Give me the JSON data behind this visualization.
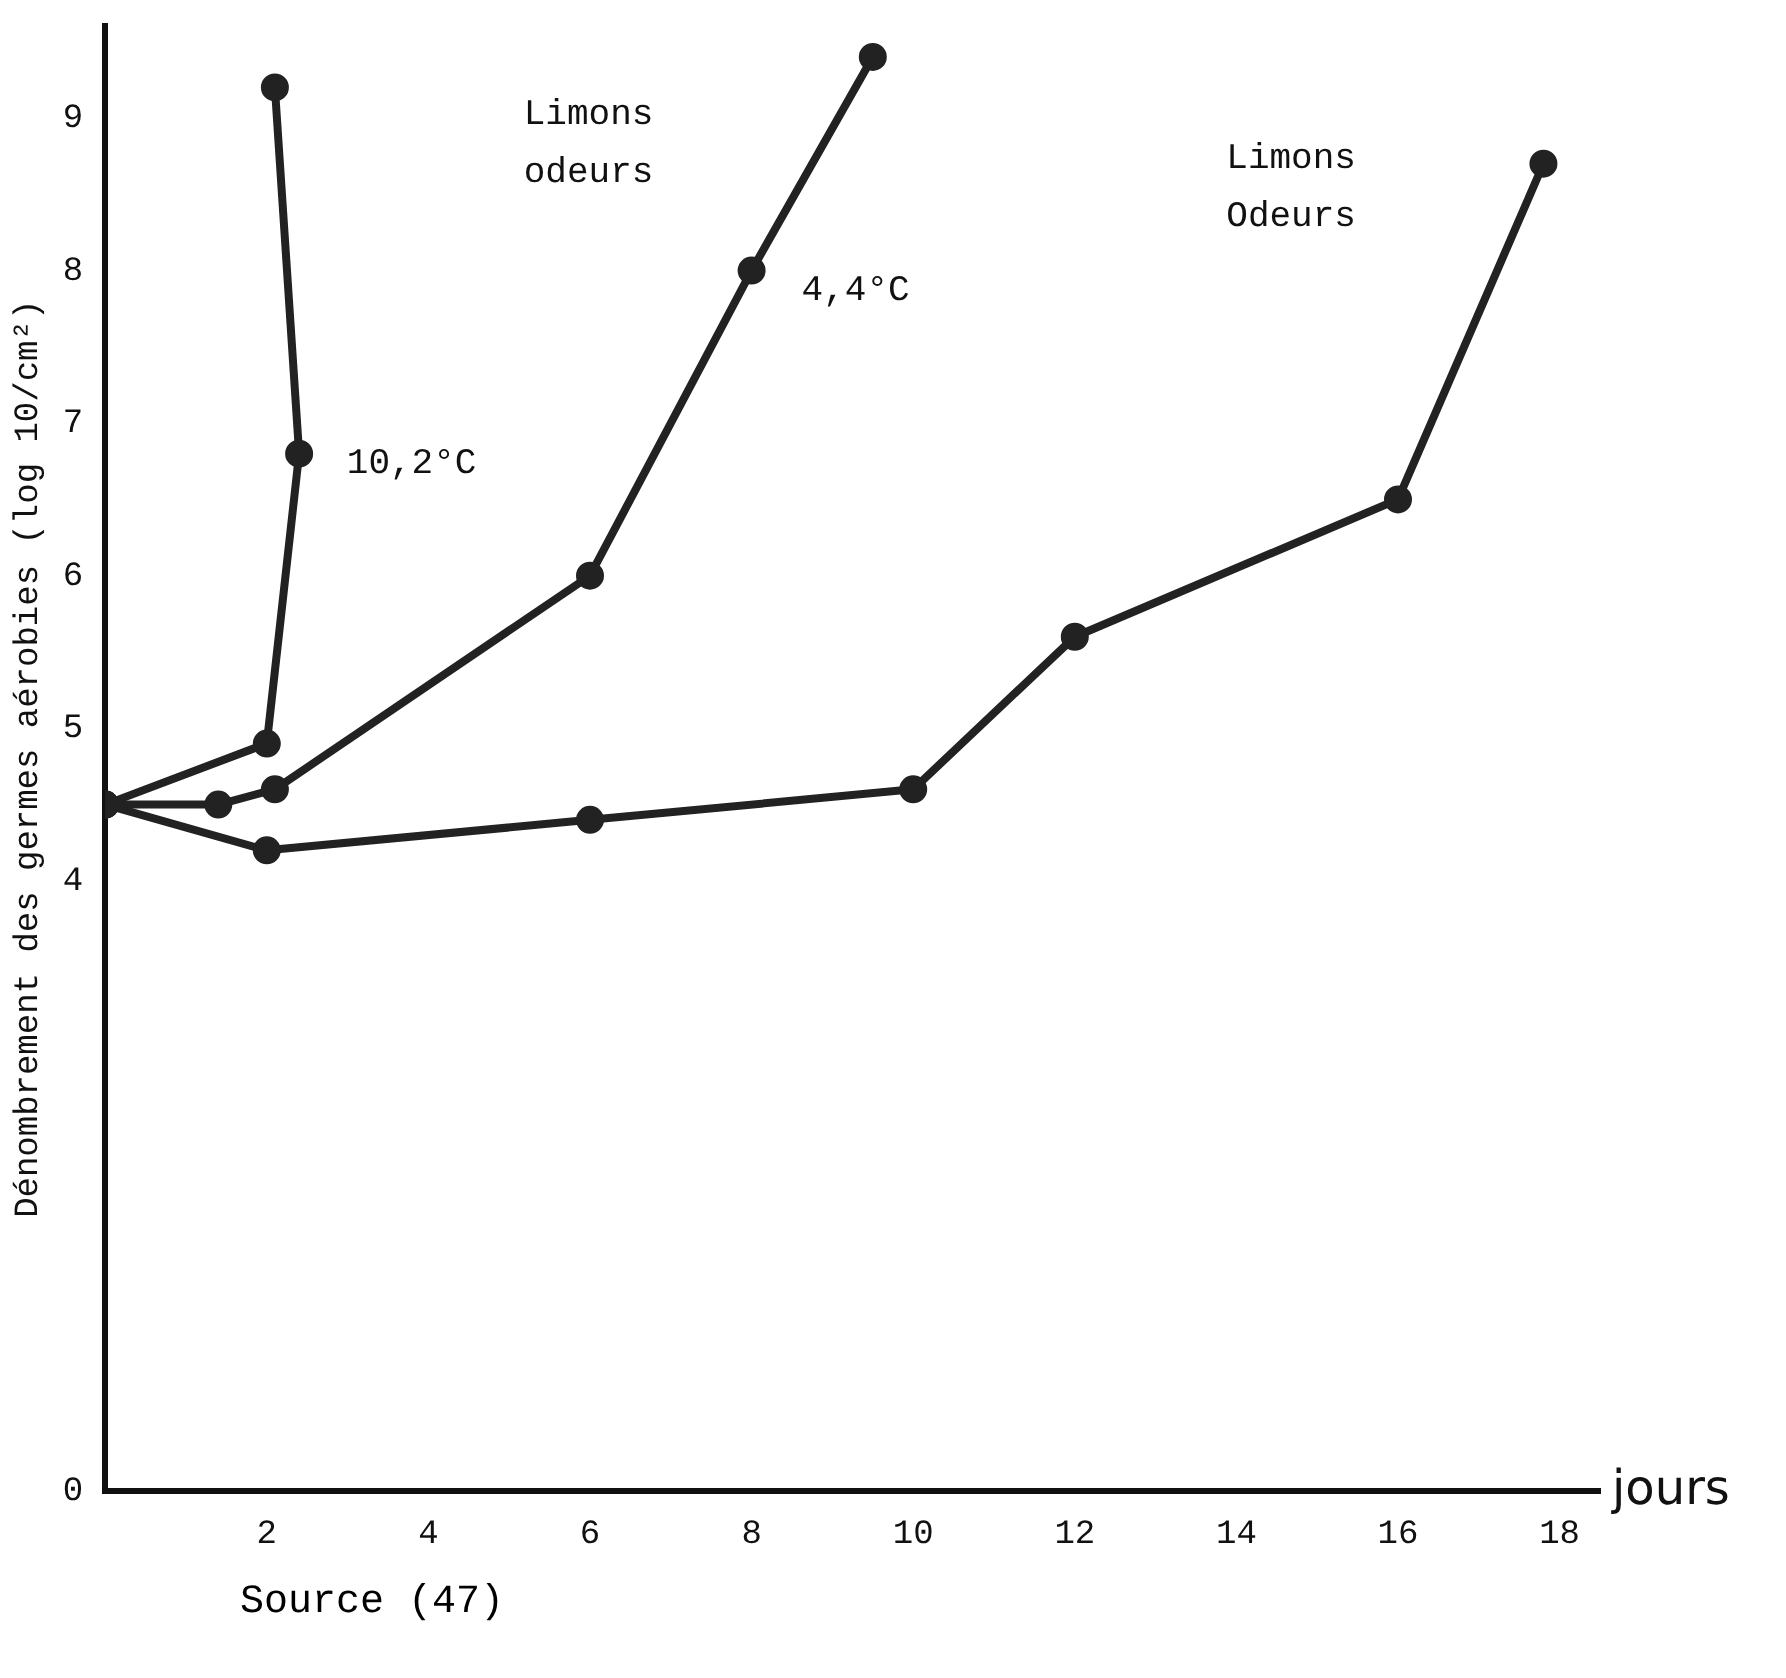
{
  "chart_data": {
    "type": "line",
    "xlabel": "jours",
    "ylabel": "Dénombrement des germes aérobies (log 10/cm²)",
    "xlim": [
      0,
      18.5
    ],
    "xticks": [
      2,
      4,
      6,
      8,
      10,
      12,
      14,
      16,
      18
    ],
    "ylim": [
      0,
      9.6
    ],
    "yticks": [
      0,
      4,
      5,
      6,
      7,
      8,
      9
    ],
    "grid": false,
    "legend": false,
    "marker": "circle",
    "line_style": "solid",
    "series": [
      {
        "name": "10,2°C",
        "color": "#222222",
        "x": [
          0,
          2,
          2.4,
          2.1
        ],
        "values": [
          4.5,
          4.9,
          6.8,
          9.2
        ]
      },
      {
        "name": "4,4°C",
        "color": "#222222",
        "x": [
          0,
          1.4,
          2.1,
          6,
          8,
          9.5
        ],
        "values": [
          4.5,
          4.5,
          4.6,
          6.0,
          8.0,
          9.4
        ]
      },
      {
        "color": "#222222",
        "x": [
          0,
          2,
          6,
          10,
          12,
          16,
          17.8
        ],
        "values": [
          4.5,
          4.2,
          4.4,
          4.6,
          5.6,
          6.5,
          8.7
        ]
      }
    ],
    "annotations": [
      "Limons",
      "odeurs",
      "Limons",
      "Odeurs",
      "Source (47)"
    ]
  }
}
